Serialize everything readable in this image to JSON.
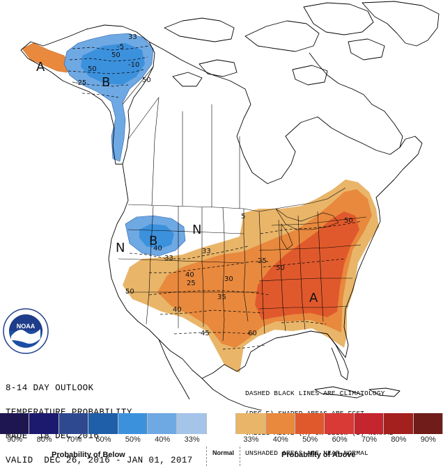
{
  "title_lines": [
    "8-14 DAY OUTLOOK",
    "TEMPERATURE PROBABILITY",
    "MADE  18 DEC 2016",
    "VALID  DEC 26, 2016 - JAN 01, 2017"
  ],
  "legend_note_lines": [
    "DASHED BLACK LINES ARE CLIMATOLOGY",
    "(DEG F) SHADED AREAS ARE FCST",
    "VALUES ABOVE (A) OR BELOW (B) NORMAL",
    "UNSHADED AREAS ARE NEAR-NORMAL"
  ],
  "logo_text": "NOAA",
  "map_labels": {
    "alaska_above": "A",
    "alaska_below": "B",
    "northwest_below": "B",
    "north_normal": "N",
    "west_normal": "N",
    "east_above": "A"
  },
  "contour_labels": [
    {
      "id": "ak-50-a",
      "text": "50"
    },
    {
      "id": "ak-50-b",
      "text": "50"
    },
    {
      "id": "ak-50-c",
      "text": "50"
    },
    {
      "id": "ak-5",
      "text": "-5"
    },
    {
      "id": "ak-10",
      "text": "-10"
    },
    {
      "id": "ak-25",
      "text": "-25"
    },
    {
      "id": "ak-33",
      "text": "33"
    },
    {
      "id": "nw-40",
      "text": "40"
    },
    {
      "id": "nw-33",
      "text": "33"
    },
    {
      "id": "gp-33",
      "text": "33"
    },
    {
      "id": "gp-40",
      "text": "40"
    },
    {
      "id": "gp-25",
      "text": "25"
    },
    {
      "id": "gp-30",
      "text": "30"
    },
    {
      "id": "gp-35",
      "text": "35"
    },
    {
      "id": "sw-40",
      "text": "40"
    },
    {
      "id": "sw-45",
      "text": "45"
    },
    {
      "id": "sw-50",
      "text": "50"
    },
    {
      "id": "se-60",
      "text": "60"
    },
    {
      "id": "e-50",
      "text": "50"
    },
    {
      "id": "ne-50",
      "text": "50"
    },
    {
      "id": "mw-25",
      "text": "25"
    },
    {
      "id": "mw-5",
      "text": "5"
    }
  ],
  "legend": {
    "swatch_colors": [
      "#1d1651",
      "#1c1a6e",
      "#2f4990",
      "#1f5ea8",
      "#3c91dd",
      "#6fa9e3",
      "#a4c4ea",
      "#ffffff",
      "#e9b569",
      "#e8893e",
      "#e0592c",
      "#d93a36",
      "#c4252f",
      "#a3201f",
      "#6f1c1a"
    ],
    "labels": [
      "90%",
      "80%",
      "70%",
      "60%",
      "50%",
      "40%",
      "33%",
      "33%",
      "40%",
      "50%",
      "60%",
      "70%",
      "80%",
      "90%"
    ],
    "caption_below": "Probability of Below",
    "caption_normal": "Normal",
    "caption_above": "Probability of Above"
  }
}
